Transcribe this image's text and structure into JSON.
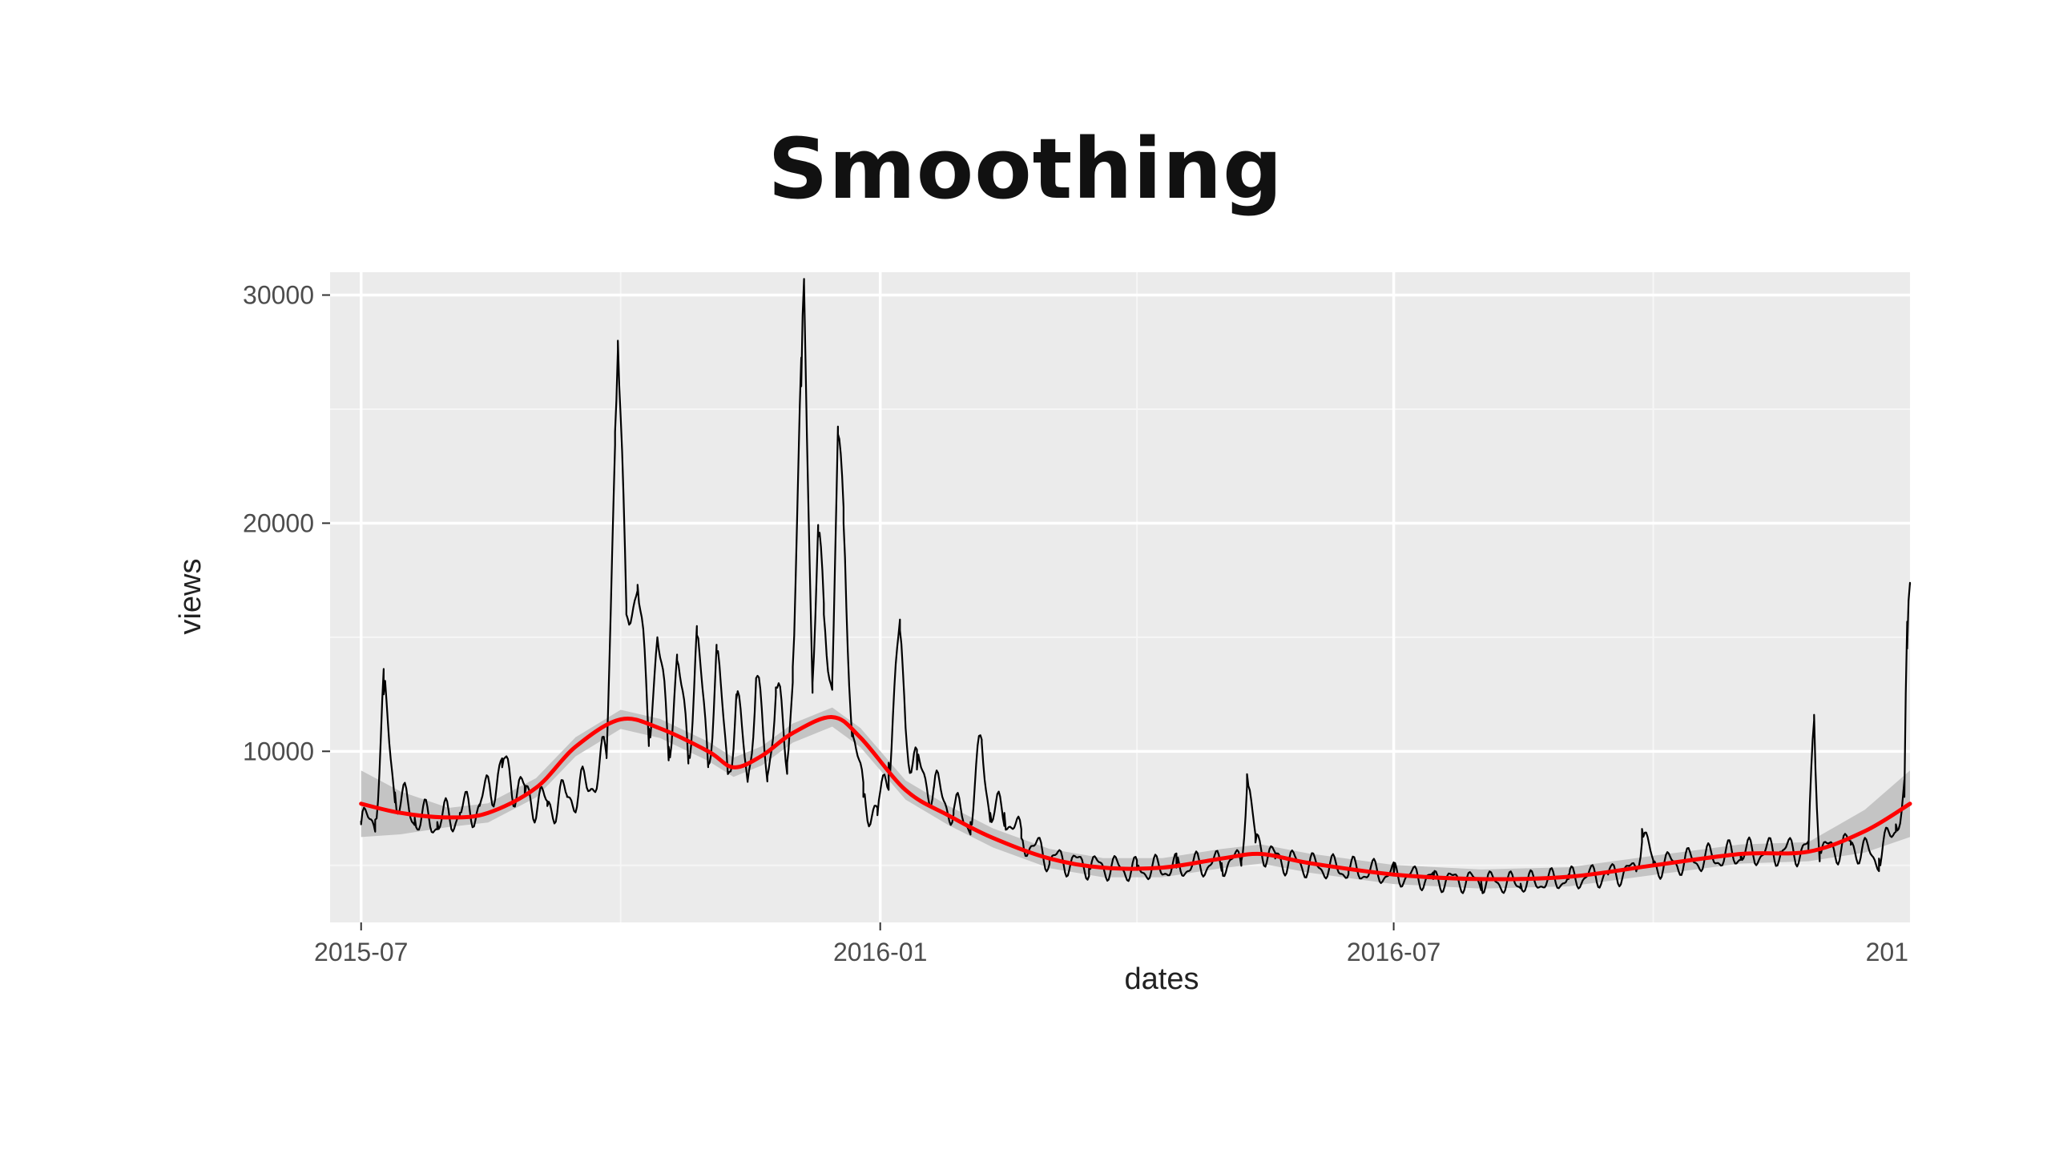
{
  "slide": {
    "title": "Smoothing"
  },
  "chart_data": {
    "type": "line",
    "title": "Smoothing",
    "xlabel": "dates",
    "ylabel": "views",
    "x_ticks": [
      "2015-07",
      "2016-01",
      "2016-07",
      "201"
    ],
    "y_ticks": [
      10000,
      20000,
      30000
    ],
    "xlim": [
      "2015-06-20",
      "2016-12-31"
    ],
    "ylim": [
      2500,
      31000
    ],
    "grid": true,
    "background": "#ebebeb",
    "series": [
      {
        "role": "raw",
        "color": "#000000",
        "anchors": [
          [
            "2015-07-01",
            6800
          ],
          [
            "2015-07-06",
            7000
          ],
          [
            "2015-07-09",
            12500
          ],
          [
            "2015-07-13",
            8200
          ],
          [
            "2015-07-20",
            7100
          ],
          [
            "2015-07-28",
            6900
          ],
          [
            "2015-08-05",
            7300
          ],
          [
            "2015-08-12",
            7600
          ],
          [
            "2015-08-20",
            9300
          ],
          [
            "2015-08-28",
            8100
          ],
          [
            "2015-09-05",
            7600
          ],
          [
            "2015-09-12",
            8000
          ],
          [
            "2015-09-19",
            8400
          ],
          [
            "2015-09-26",
            9700
          ],
          [
            "2015-09-29",
            24000
          ],
          [
            "2015-09-30",
            28000
          ],
          [
            "2015-10-03",
            16000
          ],
          [
            "2015-10-07",
            17300
          ],
          [
            "2015-10-11",
            11000
          ],
          [
            "2015-10-14",
            15000
          ],
          [
            "2015-10-18",
            10200
          ],
          [
            "2015-10-21",
            14000
          ],
          [
            "2015-10-25",
            9800
          ],
          [
            "2015-10-28",
            15100
          ],
          [
            "2015-11-01",
            9400
          ],
          [
            "2015-11-04",
            14300
          ],
          [
            "2015-11-08",
            9000
          ],
          [
            "2015-11-11",
            12300
          ],
          [
            "2015-11-15",
            8700
          ],
          [
            "2015-11-18",
            13200
          ],
          [
            "2015-11-22",
            8900
          ],
          [
            "2015-11-25",
            12800
          ],
          [
            "2015-11-29",
            9500
          ],
          [
            "2015-12-01",
            13700
          ],
          [
            "2015-12-04",
            26000
          ],
          [
            "2015-12-05",
            30500
          ],
          [
            "2015-12-08",
            13000
          ],
          [
            "2015-12-10",
            19400
          ],
          [
            "2015-12-12",
            16000
          ],
          [
            "2015-12-15",
            13000
          ],
          [
            "2015-12-17",
            23900
          ],
          [
            "2015-12-19",
            20000
          ],
          [
            "2015-12-22",
            11000
          ],
          [
            "2015-12-26",
            8000
          ],
          [
            "2015-12-31",
            7200
          ],
          [
            "2016-01-04",
            9500
          ],
          [
            "2016-01-08",
            15300
          ],
          [
            "2016-01-10",
            11000
          ],
          [
            "2016-01-14",
            9200
          ],
          [
            "2016-01-20",
            8400
          ],
          [
            "2016-01-27",
            7400
          ],
          [
            "2016-02-02",
            6900
          ],
          [
            "2016-02-06",
            10400
          ],
          [
            "2016-02-09",
            7300
          ],
          [
            "2016-02-14",
            7300
          ],
          [
            "2016-02-20",
            6200
          ],
          [
            "2016-03-01",
            5300
          ],
          [
            "2016-03-15",
            5000
          ],
          [
            "2016-04-01",
            4800
          ],
          [
            "2016-04-15",
            4900
          ],
          [
            "2016-05-01",
            5100
          ],
          [
            "2016-05-08",
            5200
          ],
          [
            "2016-05-10",
            9000
          ],
          [
            "2016-05-13",
            6000
          ],
          [
            "2016-05-20",
            5300
          ],
          [
            "2016-06-01",
            5000
          ],
          [
            "2016-06-15",
            4800
          ],
          [
            "2016-07-01",
            4600
          ],
          [
            "2016-07-15",
            4400
          ],
          [
            "2016-08-01",
            4300
          ],
          [
            "2016-08-15",
            4200
          ],
          [
            "2016-09-01",
            4400
          ],
          [
            "2016-09-15",
            4600
          ],
          [
            "2016-09-25",
            4800
          ],
          [
            "2016-09-27",
            6600
          ],
          [
            "2016-10-01",
            5000
          ],
          [
            "2016-10-15",
            5200
          ],
          [
            "2016-11-01",
            5500
          ],
          [
            "2016-11-15",
            5600
          ],
          [
            "2016-11-25",
            5700
          ],
          [
            "2016-11-27",
            11600
          ],
          [
            "2016-11-29",
            5600
          ],
          [
            "2016-12-10",
            5900
          ],
          [
            "2016-12-20",
            5300
          ],
          [
            "2016-12-26",
            6800
          ],
          [
            "2016-12-29",
            8000
          ],
          [
            "2016-12-30",
            14500
          ],
          [
            "2016-12-31",
            17300
          ]
        ]
      },
      {
        "role": "smooth",
        "color": "#ff0000",
        "band_color": "#bdbdbd",
        "points": [
          [
            "2015-07-01",
            7700
          ],
          [
            "2015-07-15",
            7300
          ],
          [
            "2015-08-01",
            7100
          ],
          [
            "2015-08-15",
            7300
          ],
          [
            "2015-09-01",
            8400
          ],
          [
            "2015-09-15",
            10200
          ],
          [
            "2015-10-01",
            11400
          ],
          [
            "2015-10-15",
            11000
          ],
          [
            "2015-11-01",
            10000
          ],
          [
            "2015-11-10",
            9300
          ],
          [
            "2015-11-20",
            9800
          ],
          [
            "2015-12-01",
            10800
          ],
          [
            "2015-12-15",
            11500
          ],
          [
            "2015-12-25",
            10600
          ],
          [
            "2016-01-10",
            8300
          ],
          [
            "2016-01-25",
            7200
          ],
          [
            "2016-02-10",
            6200
          ],
          [
            "2016-03-01",
            5300
          ],
          [
            "2016-03-20",
            4900
          ],
          [
            "2016-04-10",
            4900
          ],
          [
            "2016-05-01",
            5300
          ],
          [
            "2016-05-15",
            5500
          ],
          [
            "2016-06-01",
            5100
          ],
          [
            "2016-07-01",
            4600
          ],
          [
            "2016-08-01",
            4400
          ],
          [
            "2016-09-01",
            4500
          ],
          [
            "2016-10-01",
            5000
          ],
          [
            "2016-11-01",
            5500
          ],
          [
            "2016-11-25",
            5600
          ],
          [
            "2016-12-15",
            6500
          ],
          [
            "2016-12-31",
            7700
          ]
        ]
      }
    ]
  }
}
